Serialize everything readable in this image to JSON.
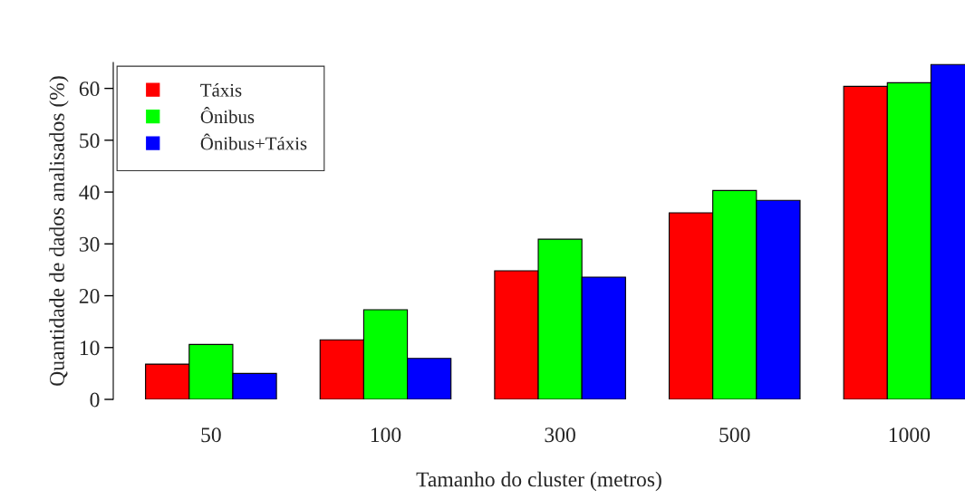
{
  "chart_data": {
    "type": "bar",
    "xlabel": "Tamanho do cluster (metros)",
    "ylabel": "Quantidade de dados analisados (%)",
    "categories": [
      "50",
      "100",
      "300",
      "500",
      "1000"
    ],
    "series": [
      {
        "name": "Táxis",
        "color": "#ff0000",
        "values": [
          6.8,
          11.5,
          24.8,
          36.0,
          60.4
        ]
      },
      {
        "name": "Ônibus",
        "color": "#00ff00",
        "values": [
          10.6,
          17.3,
          30.9,
          40.3,
          61.1
        ]
      },
      {
        "name": "Ônibus+Táxis",
        "color": "#0000ff",
        "values": [
          5.0,
          7.9,
          23.6,
          38.4,
          64.6
        ]
      }
    ],
    "ylim": [
      0,
      65
    ],
    "yticks": [
      0,
      10,
      20,
      30,
      40,
      50,
      60
    ],
    "grid": false,
    "legend": "top left"
  }
}
